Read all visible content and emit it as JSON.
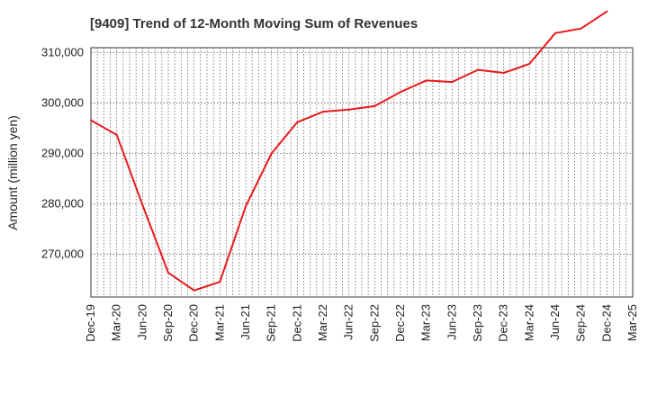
{
  "chart_data": {
    "type": "line",
    "title": "[9409]  Trend of 12-Month Moving Sum of Revenues",
    "xlabel": "",
    "ylabel": "Amount (million yen)",
    "ylim": [
      261500,
      311000
    ],
    "grid": true,
    "x": [
      "Dec-19",
      "Mar-20",
      "Jun-20",
      "Sep-20",
      "Dec-20",
      "Mar-21",
      "Jun-21",
      "Sep-21",
      "Dec-21",
      "Mar-22",
      "Jun-22",
      "Sep-22",
      "Dec-22",
      "Mar-23",
      "Jun-23",
      "Sep-23",
      "Dec-23",
      "Mar-24",
      "Jun-24",
      "Sep-24",
      "Dec-24",
      "Mar-25"
    ],
    "yticks": [
      270000,
      280000,
      290000,
      300000,
      310000
    ],
    "ytick_labels": [
      "270,000",
      "280,000",
      "290,000",
      "300,000",
      "310,000"
    ],
    "series": [
      {
        "color": "#e8191c",
        "values": [
          296600,
          293700,
          279800,
          266300,
          262800,
          264500,
          279500,
          290000,
          296200,
          298300,
          298700,
          299400,
          302200,
          304500,
          304200,
          306600,
          306000,
          307800,
          313900,
          314800,
          318200,
          null
        ]
      }
    ]
  }
}
